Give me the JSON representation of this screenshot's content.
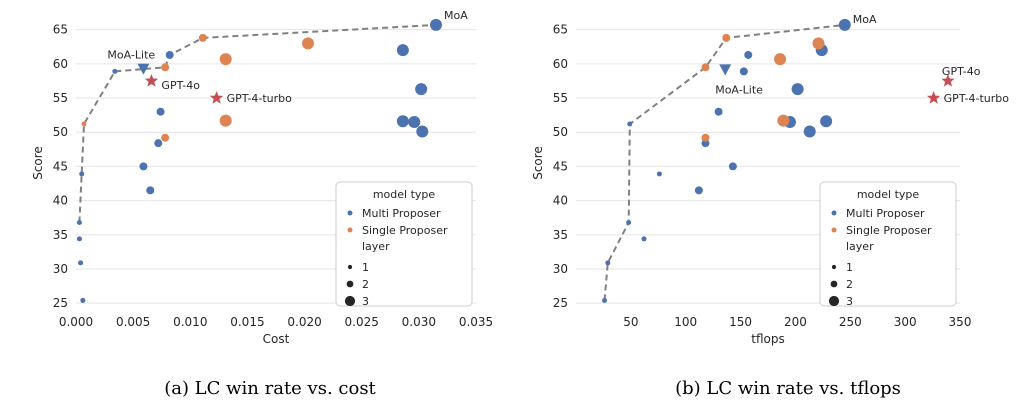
{
  "captions": [
    "(a) LC win rate vs. cost",
    "(b) LC win rate vs. tflops"
  ],
  "legend": {
    "title_type": "model type",
    "title_layer": "layer",
    "layer_labels": [
      "1",
      "2",
      "3"
    ]
  },
  "colors": {
    "multi": "#4c72b0",
    "single": "#dd8452",
    "star": "#c44e52",
    "frontier": "#808080",
    "triangle": "#4c72b0"
  },
  "chart_data": [
    {
      "type": "scatter",
      "title": "",
      "xlabel": "Cost",
      "ylabel": "Score",
      "xlim": [
        0.0,
        0.035
      ],
      "ylim": [
        24,
        67
      ],
      "xticks": [
        "0.000",
        "0.005",
        "0.010",
        "0.015",
        "0.020",
        "0.025",
        "0.030",
        "0.035"
      ],
      "xtick_values": [
        0.0,
        0.005,
        0.01,
        0.015,
        0.02,
        0.025,
        0.03,
        0.035
      ],
      "yticks": [
        25,
        30,
        35,
        40,
        45,
        50,
        55,
        60,
        65
      ],
      "grid": "horizontal",
      "legend_position": "bottom-right",
      "series": [
        {
          "name": "Multi Proposer",
          "points": [
            {
              "x": 0.0003,
              "y": 36.8,
              "layer": 1
            },
            {
              "x": 0.0003,
              "y": 34.4,
              "layer": 1
            },
            {
              "x": 0.0004,
              "y": 30.9,
              "layer": 1
            },
            {
              "x": 0.0006,
              "y": 25.4,
              "layer": 1
            },
            {
              "x": 0.0005,
              "y": 43.9,
              "layer": 1
            },
            {
              "x": 0.0034,
              "y": 58.9,
              "layer": 1
            },
            {
              "x": 0.0059,
              "y": 45.0,
              "layer": 2
            },
            {
              "x": 0.0065,
              "y": 41.5,
              "layer": 2
            },
            {
              "x": 0.0072,
              "y": 48.4,
              "layer": 2
            },
            {
              "x": 0.0074,
              "y": 53.0,
              "layer": 2
            },
            {
              "x": 0.0082,
              "y": 61.3,
              "layer": 2
            },
            {
              "x": 0.0286,
              "y": 62.0,
              "layer": 3
            },
            {
              "x": 0.0286,
              "y": 51.6,
              "layer": 3
            },
            {
              "x": 0.0296,
              "y": 51.5,
              "layer": 3
            },
            {
              "x": 0.0302,
              "y": 56.3,
              "layer": 3
            },
            {
              "x": 0.0303,
              "y": 50.1,
              "layer": 3
            },
            {
              "x": 0.0315,
              "y": 65.7,
              "layer": 3
            }
          ]
        },
        {
          "name": "Single Proposer",
          "points": [
            {
              "x": 0.0007,
              "y": 51.2,
              "layer": 1
            },
            {
              "x": 0.0078,
              "y": 49.2,
              "layer": 2
            },
            {
              "x": 0.0078,
              "y": 59.5,
              "layer": 2
            },
            {
              "x": 0.0111,
              "y": 63.8,
              "layer": 2
            },
            {
              "x": 0.0131,
              "y": 60.7,
              "layer": 3
            },
            {
              "x": 0.0131,
              "y": 51.7,
              "layer": 3
            },
            {
              "x": 0.0203,
              "y": 63.0,
              "layer": 3
            }
          ]
        }
      ],
      "frontier": [
        {
          "x": 0.0003,
          "y": 36.8
        },
        {
          "x": 0.0007,
          "y": 51.2
        },
        {
          "x": 0.0034,
          "y": 58.9
        },
        {
          "x": 0.0078,
          "y": 59.5
        },
        {
          "x": 0.0082,
          "y": 61.3
        },
        {
          "x": 0.0111,
          "y": 63.8
        },
        {
          "x": 0.0315,
          "y": 65.7
        }
      ],
      "annotations": [
        {
          "label": "MoA",
          "x": 0.0315,
          "y": 65.7,
          "marker": "none",
          "dx": 8,
          "dy": -10
        },
        {
          "label": "MoA-Lite",
          "x": 0.0059,
          "y": 59.3,
          "marker": "triangle",
          "dx": -36,
          "dy": -14
        },
        {
          "label": "GPT-4o",
          "x": 0.0066,
          "y": 57.5,
          "marker": "star",
          "dx": 10,
          "dy": 4
        },
        {
          "label": "GPT-4-turbo",
          "x": 0.0123,
          "y": 55.0,
          "marker": "star",
          "dx": 10,
          "dy": 0
        }
      ]
    },
    {
      "type": "scatter",
      "title": "",
      "xlabel": "tflops",
      "ylabel": "Score",
      "xlim": [
        0,
        350
      ],
      "ylim": [
        24,
        67
      ],
      "xticks": [
        "50",
        "100",
        "150",
        "200",
        "250",
        "300",
        "350"
      ],
      "xtick_values": [
        50,
        100,
        150,
        200,
        250,
        300,
        350
      ],
      "yticks": [
        25,
        30,
        35,
        40,
        45,
        50,
        55,
        60,
        65
      ],
      "grid": "horizontal",
      "legend_position": "bottom-right",
      "series": [
        {
          "name": "Multi Proposer",
          "points": [
            {
              "x": 26,
              "y": 25.4,
              "layer": 1
            },
            {
              "x": 29,
              "y": 30.9,
              "layer": 1
            },
            {
              "x": 48,
              "y": 36.8,
              "layer": 1
            },
            {
              "x": 49,
              "y": 51.2,
              "layer": 1
            },
            {
              "x": 62,
              "y": 34.4,
              "layer": 1
            },
            {
              "x": 76,
              "y": 43.9,
              "layer": 1
            },
            {
              "x": 112,
              "y": 41.5,
              "layer": 2
            },
            {
              "x": 118,
              "y": 48.4,
              "layer": 2
            },
            {
              "x": 130,
              "y": 53.0,
              "layer": 2
            },
            {
              "x": 143,
              "y": 45.0,
              "layer": 2
            },
            {
              "x": 153,
              "y": 58.9,
              "layer": 2
            },
            {
              "x": 157,
              "y": 61.3,
              "layer": 2
            },
            {
              "x": 195,
              "y": 51.5,
              "layer": 3
            },
            {
              "x": 202,
              "y": 56.3,
              "layer": 3
            },
            {
              "x": 213,
              "y": 50.1,
              "layer": 3
            },
            {
              "x": 224,
              "y": 62.0,
              "layer": 3
            },
            {
              "x": 228,
              "y": 51.6,
              "layer": 3
            },
            {
              "x": 245,
              "y": 65.7,
              "layer": 3
            }
          ]
        },
        {
          "name": "Single Proposer",
          "points": [
            {
              "x": 118,
              "y": 49.2,
              "layer": 2
            },
            {
              "x": 118,
              "y": 59.5,
              "layer": 2
            },
            {
              "x": 137,
              "y": 63.8,
              "layer": 2
            },
            {
              "x": 186,
              "y": 60.7,
              "layer": 3
            },
            {
              "x": 189,
              "y": 51.7,
              "layer": 3
            },
            {
              "x": 221,
              "y": 63.0,
              "layer": 3
            }
          ]
        }
      ],
      "frontier": [
        {
          "x": 26,
          "y": 25.4
        },
        {
          "x": 29,
          "y": 30.9
        },
        {
          "x": 48,
          "y": 36.8
        },
        {
          "x": 49,
          "y": 51.2
        },
        {
          "x": 118,
          "y": 59.5
        },
        {
          "x": 137,
          "y": 63.8
        },
        {
          "x": 245,
          "y": 65.7
        }
      ],
      "annotations": [
        {
          "label": "MoA",
          "x": 245,
          "y": 65.7,
          "marker": "none",
          "dx": 8,
          "dy": -6
        },
        {
          "label": "MoA-Lite",
          "x": 136,
          "y": 59.2,
          "marker": "triangle",
          "dx": -10,
          "dy": 20
        },
        {
          "label": "GPT-4o",
          "x": 339,
          "y": 57.5,
          "marker": "star",
          "dx": -6,
          "dy": -10
        },
        {
          "label": "GPT-4-turbo",
          "x": 326,
          "y": 55.0,
          "marker": "star",
          "dx": 10,
          "dy": 0
        }
      ]
    }
  ]
}
